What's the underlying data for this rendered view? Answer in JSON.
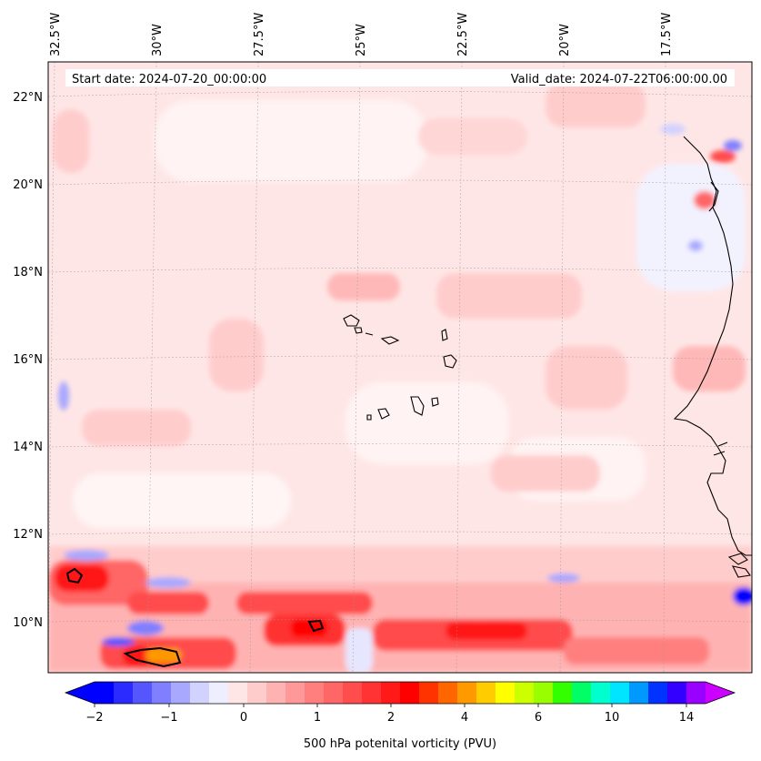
{
  "header": {
    "start_date": "Start date: 2024-07-20_00:00:00",
    "valid_date": "Valid_date: 2024-07-22T06:00:00.00"
  },
  "map": {
    "lon_labels": [
      "32.5°W",
      "30°W",
      "27.5°W",
      "25°W",
      "22.5°W",
      "20°W",
      "17.5°W"
    ],
    "lat_labels": [
      "22°N",
      "20°N",
      "18°N",
      "16°N",
      "14°N",
      "12°N",
      "10°N"
    ]
  },
  "colorbar": {
    "label": "500 hPa potenital vorticity (PVU)",
    "tick_labels": [
      "−2",
      "−1",
      "0",
      "1",
      "2",
      "4",
      "6",
      "10",
      "14"
    ],
    "colors": [
      "#0000ff",
      "#2b2bff",
      "#5656ff",
      "#7f7fff",
      "#a8a8ff",
      "#d2d2ff",
      "#eeeeff",
      "#ffe6e6",
      "#ffcccc",
      "#ffb2b2",
      "#ff9999",
      "#ff7f7f",
      "#ff6666",
      "#ff4c4c",
      "#ff3333",
      "#ff1919",
      "#ff0000",
      "#ff3300",
      "#ff6600",
      "#ff9900",
      "#ffcc00",
      "#ffff00",
      "#ccff00",
      "#99ff00",
      "#33ff00",
      "#00ff66",
      "#00ffcc",
      "#00e5ff",
      "#0099ff",
      "#0033ff",
      "#3300ff",
      "#9900ff"
    ],
    "under_color": "#0000ff",
    "over_color": "#cc00ff"
  }
}
